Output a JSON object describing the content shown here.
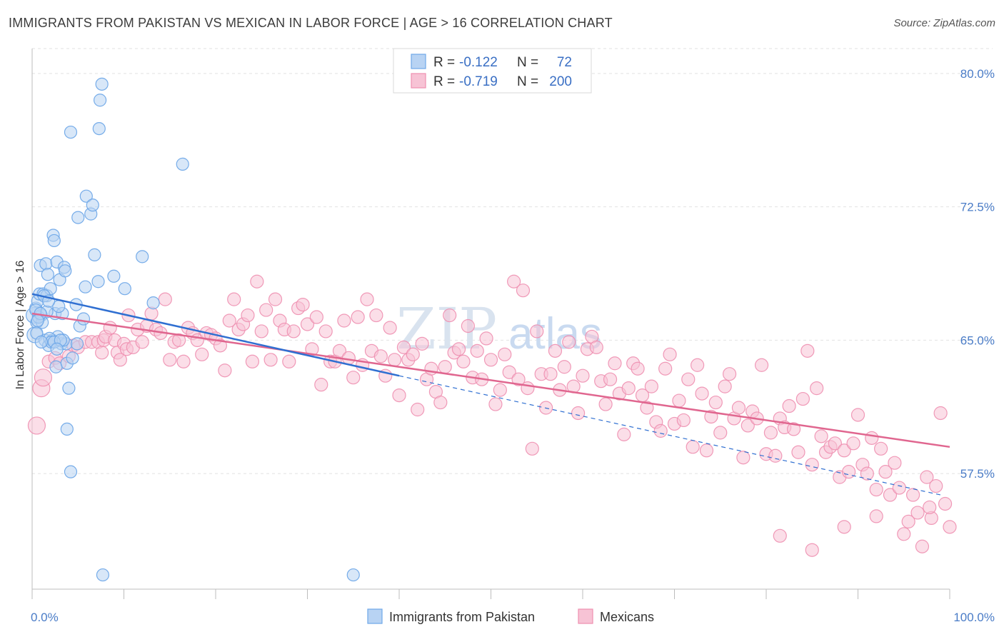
{
  "title": "IMMIGRANTS FROM PAKISTAN VS MEXICAN IN LABOR FORCE | AGE > 16 CORRELATION CHART",
  "source": "Source: ZipAtlas.com",
  "watermark": {
    "left": "ZIP",
    "right": "atlas"
  },
  "colors": {
    "blue": "#6fa8e8",
    "blue_fill": "#b8d3f3",
    "pink": "#ee8fb0",
    "pink_fill": "#f7c3d5",
    "blue_line": "#2f6fd1",
    "pink_line": "#e0668f"
  },
  "legend": {
    "r_label": "R =",
    "n_label": "N =",
    "series": [
      {
        "r": "-0.122",
        "n": "72"
      },
      {
        "r": "-0.719",
        "n": "200"
      }
    ]
  },
  "chart_data": {
    "type": "scatter",
    "title": "IMMIGRANTS FROM PAKISTAN VS MEXICAN IN LABOR FORCE | AGE > 16 CORRELATION CHART",
    "xlabel": "",
    "ylabel": "In Labor Force | Age > 16",
    "xlim": [
      0,
      100
    ],
    "ylim": [
      51,
      81
    ],
    "x_tick_labels": [
      "0.0%",
      "100.0%"
    ],
    "y_ticks": [
      57.5,
      65.0,
      72.5,
      80.0
    ],
    "y_tick_labels": [
      "57.5%",
      "65.0%",
      "72.5%",
      "80.0%"
    ],
    "grid": "horizontal-dashed",
    "legend_position": "top-center",
    "series": [
      {
        "name": "Immigrants from Pakistan",
        "trend": {
          "x0": 0,
          "y0": 67.6,
          "x1": 40,
          "y1": 63.0,
          "dash_x1": 99,
          "dash_y1": 56.3
        },
        "points": [
          [
            0.2,
            66.4
          ],
          [
            0.3,
            65.3
          ],
          [
            0.4,
            66.8
          ],
          [
            0.5,
            66.0
          ],
          [
            0.6,
            67.2
          ],
          [
            0.8,
            67.6
          ],
          [
            0.9,
            69.2
          ],
          [
            1.0,
            66.4
          ],
          [
            1.2,
            67.6
          ],
          [
            1.4,
            65.0
          ],
          [
            1.5,
            69.3
          ],
          [
            1.6,
            67.5
          ],
          [
            1.7,
            68.7
          ],
          [
            1.8,
            64.7
          ],
          [
            2.0,
            67.9
          ],
          [
            2.2,
            65.0
          ],
          [
            2.3,
            70.9
          ],
          [
            2.4,
            70.6
          ],
          [
            2.5,
            66.5
          ],
          [
            2.6,
            63.5
          ],
          [
            2.7,
            69.4
          ],
          [
            2.8,
            65.2
          ],
          [
            3.0,
            68.4
          ],
          [
            3.2,
            64.8
          ],
          [
            3.3,
            66.5
          ],
          [
            3.5,
            69.1
          ],
          [
            3.6,
            68.9
          ],
          [
            3.7,
            64.8
          ],
          [
            3.8,
            63.7
          ],
          [
            4.0,
            62.3
          ],
          [
            4.2,
            76.7
          ],
          [
            4.4,
            64.0
          ],
          [
            4.8,
            67.0
          ],
          [
            4.9,
            64.8
          ],
          [
            5.0,
            71.9
          ],
          [
            5.2,
            65.8
          ],
          [
            5.6,
            66.2
          ],
          [
            5.8,
            68.0
          ],
          [
            5.9,
            73.1
          ],
          [
            6.4,
            72.1
          ],
          [
            6.6,
            72.6
          ],
          [
            6.8,
            69.8
          ],
          [
            7.2,
            68.3
          ],
          [
            7.3,
            76.9
          ],
          [
            7.4,
            78.5
          ],
          [
            7.6,
            79.4
          ],
          [
            8.9,
            68.6
          ],
          [
            10.1,
            67.9
          ],
          [
            12.0,
            69.7
          ],
          [
            13.2,
            67.1
          ],
          [
            16.4,
            74.9
          ],
          [
            3.8,
            60.0
          ],
          [
            4.2,
            57.6
          ],
          [
            7.7,
            51.8
          ],
          [
            35.0,
            51.8
          ],
          [
            0.5,
            65.4
          ],
          [
            1.1,
            66.0
          ],
          [
            1.9,
            65.1
          ],
          [
            2.9,
            66.9
          ],
          [
            3.4,
            65.0
          ],
          [
            0.7,
            66.3
          ],
          [
            1.3,
            67.5
          ],
          [
            2.1,
            64.9
          ],
          [
            0.4,
            66.7
          ],
          [
            1.6,
            66.6
          ],
          [
            2.4,
            64.9
          ],
          [
            0.9,
            66.5
          ],
          [
            1.8,
            67.2
          ],
          [
            0.6,
            66.1
          ],
          [
            3.1,
            65.0
          ],
          [
            1.0,
            64.9
          ],
          [
            2.7,
            64.5
          ]
        ]
      },
      {
        "name": "Mexicans",
        "trend": {
          "x0": 0,
          "y0": 66.5,
          "x1": 100,
          "y1": 59.0
        },
        "points": [
          [
            0.5,
            60.2
          ],
          [
            1.0,
            62.3
          ],
          [
            1.2,
            62.9
          ],
          [
            1.8,
            63.8
          ],
          [
            2.5,
            64.0
          ],
          [
            3.0,
            63.7
          ],
          [
            4.0,
            64.1
          ],
          [
            4.5,
            64.7
          ],
          [
            5.0,
            64.6
          ],
          [
            5.8,
            64.9
          ],
          [
            6.5,
            64.9
          ],
          [
            7.2,
            64.9
          ],
          [
            7.6,
            64.3
          ],
          [
            7.8,
            65.0
          ],
          [
            8.0,
            65.2
          ],
          [
            8.5,
            65.7
          ],
          [
            9.0,
            65.0
          ],
          [
            9.3,
            64.3
          ],
          [
            9.6,
            63.9
          ],
          [
            10.0,
            64.8
          ],
          [
            10.3,
            64.5
          ],
          [
            10.5,
            66.4
          ],
          [
            11.0,
            64.6
          ],
          [
            11.5,
            65.6
          ],
          [
            12.0,
            64.9
          ],
          [
            12.5,
            65.8
          ],
          [
            13.0,
            66.5
          ],
          [
            13.5,
            65.6
          ],
          [
            14.0,
            65.4
          ],
          [
            14.5,
            67.3
          ],
          [
            15.0,
            63.9
          ],
          [
            15.5,
            64.9
          ],
          [
            16.0,
            65.0
          ],
          [
            16.5,
            63.8
          ],
          [
            17.0,
            65.7
          ],
          [
            17.5,
            65.4
          ],
          [
            18.0,
            65.0
          ],
          [
            18.5,
            64.2
          ],
          [
            19.0,
            65.4
          ],
          [
            19.5,
            65.3
          ],
          [
            20.0,
            65.1
          ],
          [
            20.5,
            64.7
          ],
          [
            21.0,
            63.3
          ],
          [
            21.5,
            66.1
          ],
          [
            22.0,
            67.3
          ],
          [
            22.5,
            65.6
          ],
          [
            23.0,
            65.9
          ],
          [
            23.5,
            66.4
          ],
          [
            24.0,
            63.8
          ],
          [
            24.5,
            68.3
          ],
          [
            25.0,
            65.5
          ],
          [
            25.5,
            66.7
          ],
          [
            26.0,
            63.9
          ],
          [
            26.5,
            67.3
          ],
          [
            27.0,
            66.1
          ],
          [
            27.5,
            65.6
          ],
          [
            28.0,
            63.8
          ],
          [
            28.5,
            65.5
          ],
          [
            29.0,
            66.8
          ],
          [
            29.5,
            67.0
          ],
          [
            30.0,
            65.9
          ],
          [
            30.5,
            64.5
          ],
          [
            31.0,
            66.3
          ],
          [
            31.5,
            62.5
          ],
          [
            32.0,
            65.5
          ],
          [
            32.5,
            63.8
          ],
          [
            33.0,
            63.8
          ],
          [
            33.5,
            64.4
          ],
          [
            34.0,
            66.1
          ],
          [
            34.5,
            64.0
          ],
          [
            35.0,
            62.9
          ],
          [
            35.5,
            66.3
          ],
          [
            36.0,
            63.6
          ],
          [
            36.5,
            67.3
          ],
          [
            37.0,
            64.4
          ],
          [
            37.5,
            66.4
          ],
          [
            38.0,
            64.1
          ],
          [
            38.5,
            63.0
          ],
          [
            39.0,
            65.7
          ],
          [
            39.5,
            63.9
          ],
          [
            40.0,
            61.9
          ],
          [
            40.5,
            64.6
          ],
          [
            41.0,
            63.9
          ],
          [
            41.5,
            64.2
          ],
          [
            42.0,
            61.1
          ],
          [
            42.5,
            64.8
          ],
          [
            43.0,
            62.8
          ],
          [
            43.5,
            63.4
          ],
          [
            44.0,
            62.1
          ],
          [
            44.5,
            61.5
          ],
          [
            45.0,
            63.5
          ],
          [
            45.5,
            66.4
          ],
          [
            46.0,
            64.3
          ],
          [
            46.5,
            64.5
          ],
          [
            47.0,
            63.8
          ],
          [
            47.5,
            65.8
          ],
          [
            48.0,
            62.9
          ],
          [
            48.5,
            64.4
          ],
          [
            49.0,
            62.8
          ],
          [
            49.5,
            65.1
          ],
          [
            50.0,
            63.9
          ],
          [
            50.5,
            61.4
          ],
          [
            51.0,
            62.2
          ],
          [
            51.5,
            64.2
          ],
          [
            52.0,
            63.2
          ],
          [
            52.5,
            68.3
          ],
          [
            53.0,
            62.8
          ],
          [
            53.5,
            67.8
          ],
          [
            54.0,
            62.3
          ],
          [
            54.5,
            58.9
          ],
          [
            55.0,
            65.5
          ],
          [
            55.5,
            63.1
          ],
          [
            56.0,
            61.2
          ],
          [
            56.5,
            63.1
          ],
          [
            57.0,
            64.4
          ],
          [
            57.5,
            62.2
          ],
          [
            58.0,
            63.5
          ],
          [
            58.5,
            64.9
          ],
          [
            59.0,
            62.4
          ],
          [
            59.5,
            60.9
          ],
          [
            60.0,
            63.0
          ],
          [
            60.5,
            64.5
          ],
          [
            61.0,
            65.2
          ],
          [
            61.5,
            64.6
          ],
          [
            62.0,
            62.7
          ],
          [
            62.5,
            61.4
          ],
          [
            63.0,
            62.8
          ],
          [
            63.5,
            63.7
          ],
          [
            64.0,
            62.0
          ],
          [
            64.5,
            59.7
          ],
          [
            65.0,
            62.3
          ],
          [
            65.5,
            63.7
          ],
          [
            66.0,
            63.4
          ],
          [
            66.5,
            61.9
          ],
          [
            67.0,
            61.2
          ],
          [
            67.5,
            62.4
          ],
          [
            68.0,
            60.4
          ],
          [
            68.5,
            59.9
          ],
          [
            69.0,
            63.4
          ],
          [
            69.5,
            64.2
          ],
          [
            70.0,
            60.3
          ],
          [
            70.5,
            61.6
          ],
          [
            71.0,
            60.5
          ],
          [
            71.5,
            62.8
          ],
          [
            72.0,
            59.0
          ],
          [
            72.5,
            63.6
          ],
          [
            73.0,
            62.0
          ],
          [
            73.5,
            58.8
          ],
          [
            74.0,
            60.7
          ],
          [
            74.5,
            61.5
          ],
          [
            75.0,
            59.8
          ],
          [
            75.5,
            62.4
          ],
          [
            76.0,
            63.1
          ],
          [
            76.5,
            60.6
          ],
          [
            77.0,
            61.2
          ],
          [
            77.5,
            58.4
          ],
          [
            78.0,
            60.2
          ],
          [
            78.5,
            61.0
          ],
          [
            79.0,
            60.6
          ],
          [
            79.5,
            63.6
          ],
          [
            80.0,
            58.6
          ],
          [
            80.5,
            59.8
          ],
          [
            81.0,
            58.5
          ],
          [
            81.5,
            60.6
          ],
          [
            82.0,
            60.1
          ],
          [
            82.5,
            61.3
          ],
          [
            83.0,
            60.0
          ],
          [
            83.5,
            58.7
          ],
          [
            84.0,
            61.7
          ],
          [
            84.5,
            64.4
          ],
          [
            85.0,
            58.0
          ],
          [
            85.5,
            62.3
          ],
          [
            86.0,
            59.6
          ],
          [
            86.5,
            58.7
          ],
          [
            87.0,
            59.0
          ],
          [
            87.5,
            59.2
          ],
          [
            88.0,
            57.3
          ],
          [
            88.5,
            58.8
          ],
          [
            89.0,
            57.6
          ],
          [
            89.5,
            59.2
          ],
          [
            90.0,
            60.8
          ],
          [
            90.5,
            58.0
          ],
          [
            91.0,
            57.5
          ],
          [
            91.5,
            59.5
          ],
          [
            92.0,
            56.6
          ],
          [
            92.5,
            58.9
          ],
          [
            93.0,
            57.6
          ],
          [
            93.5,
            56.3
          ],
          [
            94.0,
            58.1
          ],
          [
            94.5,
            56.7
          ],
          [
            95.0,
            54.1
          ],
          [
            96.0,
            56.3
          ],
          [
            96.5,
            55.3
          ],
          [
            97.0,
            53.4
          ],
          [
            97.5,
            57.3
          ],
          [
            98.0,
            55.0
          ],
          [
            98.5,
            56.8
          ],
          [
            99.0,
            60.9
          ],
          [
            99.5,
            55.8
          ],
          [
            100.0,
            54.5
          ],
          [
            81.5,
            54.0
          ],
          [
            85.0,
            53.2
          ],
          [
            88.5,
            54.5
          ],
          [
            92.0,
            55.1
          ],
          [
            95.5,
            54.8
          ],
          [
            97.8,
            55.6
          ]
        ]
      }
    ]
  }
}
